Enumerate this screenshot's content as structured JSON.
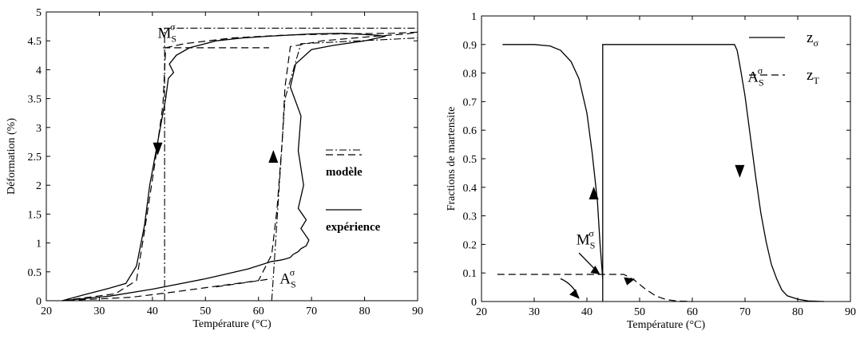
{
  "chart_data": [
    {
      "type": "line",
      "xlabel": "Température (°C)",
      "ylabel": "Déformation (%)",
      "xlim": [
        20,
        90
      ],
      "ylim": [
        0,
        5
      ],
      "xticks": [
        "20",
        "30",
        "40",
        "50",
        "60",
        "70",
        "80",
        "90"
      ],
      "yticks": [
        "0",
        "0.5",
        "1",
        "1.5",
        "2",
        "2.5",
        "3",
        "3.5",
        "4",
        "4.5",
        "5"
      ],
      "annotations": [
        {
          "main": "M",
          "sub": "S",
          "sup": "σ",
          "x": 41,
          "y": 4.55
        },
        {
          "main": "A",
          "sub": "S",
          "sup": "σ",
          "x": 64,
          "y": 0.3
        }
      ],
      "legend": {
        "placement": "right-center",
        "entries": [
          "modèle",
          "expérience"
        ]
      },
      "series": [
        {
          "name": "expérience",
          "style": "solid",
          "x": [
            23,
            27,
            32,
            35,
            37,
            38.5,
            39.5,
            40.5,
            41.5,
            42.5,
            43,
            44,
            43.2,
            44.5,
            47,
            52,
            57,
            62,
            66,
            70,
            76,
            82,
            84,
            80,
            74,
            70,
            67,
            66,
            68,
            67.5,
            68.5,
            67.5,
            69,
            68,
            69.5,
            69,
            68,
            67.5,
            66.5,
            66,
            65,
            64,
            62.5,
            58,
            50,
            40,
            32,
            23
          ],
          "y": [
            0,
            0.1,
            0.22,
            0.3,
            0.6,
            1.3,
            2.0,
            2.5,
            3.0,
            3.5,
            3.85,
            3.95,
            4.1,
            4.25,
            4.38,
            4.5,
            4.55,
            4.58,
            4.6,
            4.62,
            4.63,
            4.6,
            4.58,
            4.5,
            4.42,
            4.35,
            4.1,
            3.7,
            3.2,
            2.6,
            2.0,
            1.6,
            1.4,
            1.25,
            1.05,
            0.95,
            0.9,
            0.85,
            0.8,
            0.75,
            0.72,
            0.7,
            0.68,
            0.55,
            0.38,
            0.2,
            0.08,
            0
          ]
        },
        {
          "name": "modèle",
          "style": "dash",
          "x": [
            23,
            33,
            37,
            38.5,
            40.5,
            42,
            42.5,
            46,
            55,
            65,
            75,
            85,
            90,
            88,
            82,
            72,
            66,
            65,
            64.5,
            63.5,
            62.5,
            60,
            52,
            44,
            36,
            23
          ],
          "y": [
            0,
            0.12,
            0.35,
            1.2,
            2.4,
            3.4,
            4.38,
            4.45,
            4.55,
            4.6,
            4.62,
            4.63,
            4.65,
            4.62,
            4.58,
            4.5,
            4.4,
            3.7,
            2.8,
            1.6,
            0.8,
            0.35,
            0.25,
            0.15,
            0.06,
            0
          ]
        }
      ]
    },
    {
      "type": "line",
      "xlabel": "Température (°C)",
      "ylabel": "Fractions de martensite",
      "xlim": [
        20,
        90
      ],
      "ylim": [
        0,
        1
      ],
      "xticks": [
        "20",
        "30",
        "40",
        "50",
        "60",
        "70",
        "80",
        "90"
      ],
      "yticks": [
        "0",
        "0.1",
        "0.2",
        "0.3",
        "0.4",
        "0.5",
        "0.6",
        "0.7",
        "0.8",
        "0.9",
        "1"
      ],
      "annotations": [
        {
          "main": "A",
          "sub": "S",
          "sup": "σ",
          "x": 70.5,
          "y": 0.77
        },
        {
          "main": "M",
          "sub": "S",
          "sup": "σ",
          "x": 38,
          "y": 0.2
        }
      ],
      "legend": {
        "placement": "top-right",
        "entries": [
          {
            "main": "z",
            "sub": "σ"
          },
          {
            "main": "z",
            "sub": "T"
          }
        ]
      },
      "series": [
        {
          "name": "zσ",
          "style": "solid",
          "x": [
            24,
            30,
            33,
            35,
            37,
            38.5,
            40,
            41,
            42,
            42.5,
            43,
            43,
            43,
            68,
            68.5,
            69,
            70,
            71,
            72,
            73,
            74,
            75,
            76,
            77,
            78,
            80,
            82,
            85
          ],
          "y": [
            0.9,
            0.9,
            0.895,
            0.88,
            0.84,
            0.78,
            0.66,
            0.52,
            0.35,
            0.2,
            0.08,
            0,
            0.9,
            0.9,
            0.88,
            0.83,
            0.72,
            0.58,
            0.44,
            0.31,
            0.21,
            0.13,
            0.08,
            0.04,
            0.02,
            0.008,
            0.002,
            0
          ]
        },
        {
          "name": "zT",
          "style": "dash",
          "x": [
            23,
            30,
            35,
            40,
            42.5,
            43,
            47,
            49,
            51,
            53,
            55,
            57,
            60
          ],
          "y": [
            0.095,
            0.095,
            0.095,
            0.095,
            0.095,
            0.095,
            0.095,
            0.075,
            0.045,
            0.02,
            0.007,
            0.002,
            0
          ]
        }
      ]
    }
  ]
}
